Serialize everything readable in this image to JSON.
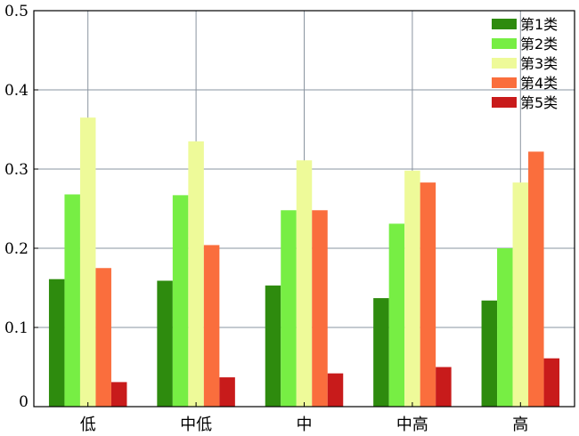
{
  "chart_data": {
    "type": "bar",
    "categories": [
      "低",
      "中低",
      "中",
      "中高",
      "高"
    ],
    "series": [
      {
        "name": "第1类",
        "color": "#2e8b0e",
        "values": [
          0.161,
          0.159,
          0.153,
          0.137,
          0.134
        ]
      },
      {
        "name": "第2类",
        "color": "#77ee44",
        "values": [
          0.268,
          0.267,
          0.248,
          0.231,
          0.2
        ]
      },
      {
        "name": "第3类",
        "color": "#eefa99",
        "values": [
          0.365,
          0.335,
          0.311,
          0.298,
          0.283
        ]
      },
      {
        "name": "第4类",
        "color": "#fa6e3d",
        "values": [
          0.175,
          0.204,
          0.248,
          0.283,
          0.322
        ]
      },
      {
        "name": "第5类",
        "color": "#c81b1b",
        "values": [
          0.031,
          0.037,
          0.042,
          0.05,
          0.061
        ]
      }
    ],
    "ylim": [
      0,
      0.5
    ],
    "yticks": [
      "0",
      "0.1",
      "0.2",
      "0.3",
      "0.4",
      "0.5"
    ],
    "grid": true,
    "legend_position": "top-right",
    "grid_color": "#8a94a0"
  }
}
